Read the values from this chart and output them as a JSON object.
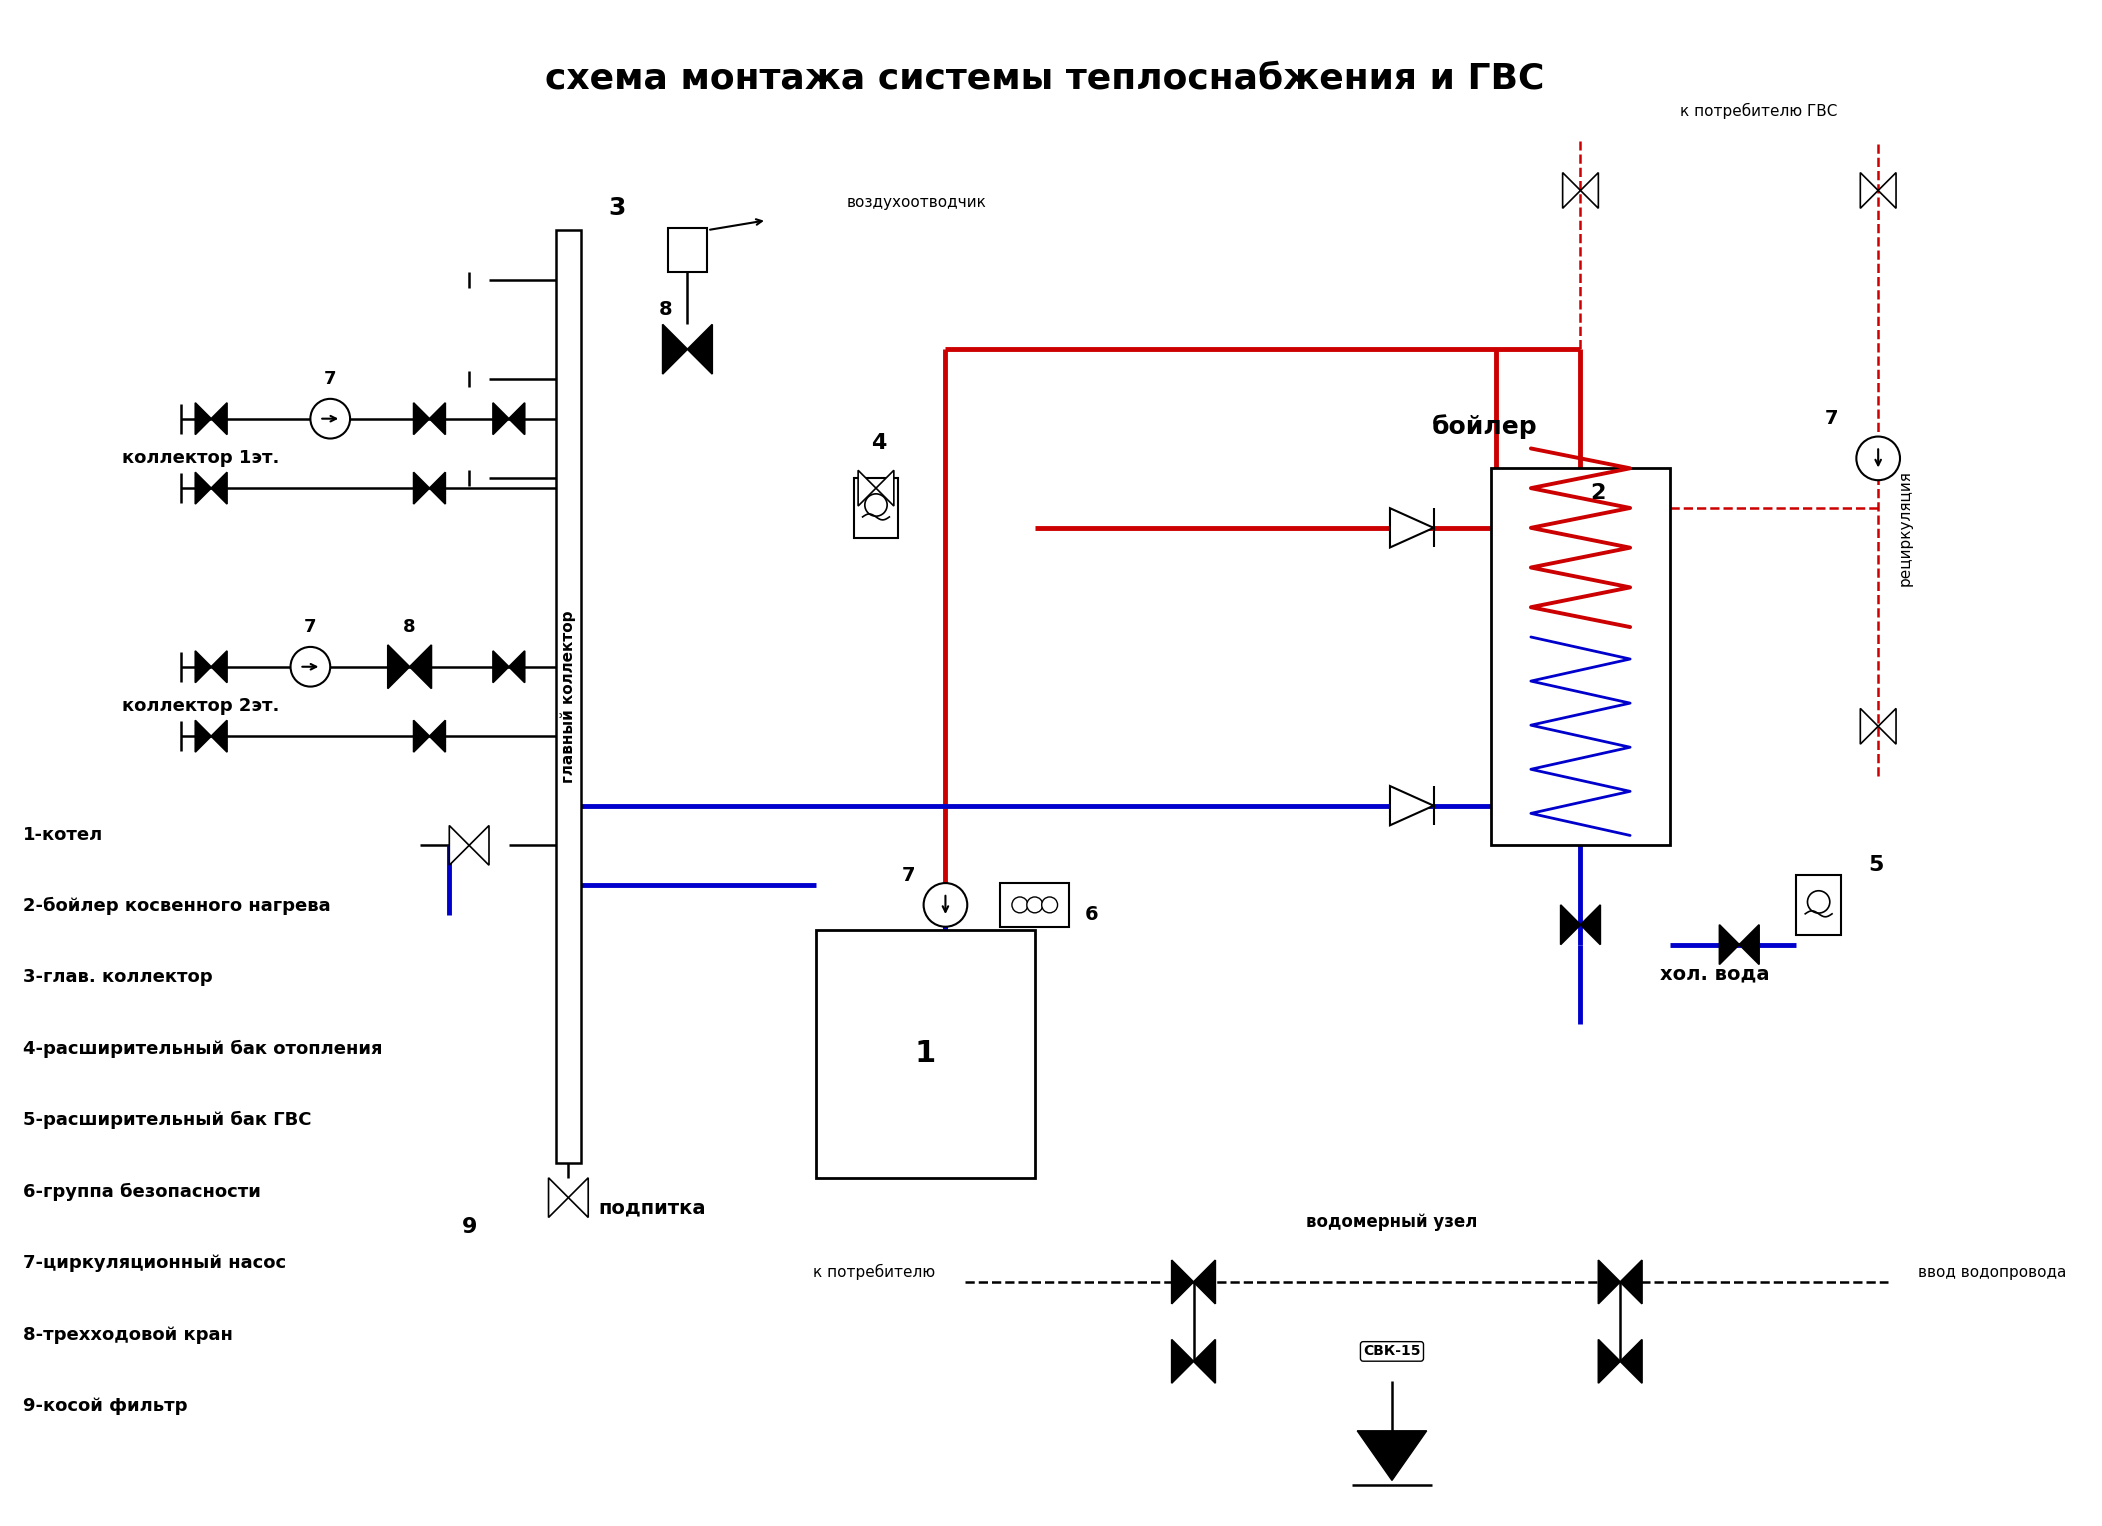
{
  "title": "схема монтажа системы теплоснабжения и ГВС",
  "title_fontsize": 26,
  "bg_color": "#ffffff",
  "line_color": "#000000",
  "red_color": "#cc0000",
  "blue_color": "#0000cc",
  "red_light": "#cc6666",
  "blue_light": "#6666cc",
  "legend_items": [
    "1-котел",
    "2-бойлер косвенного нагрева",
    "3-глав. коллектор",
    "4-расширительный бак отопления",
    "5-расширительный бак ГВС",
    "6-группа безопасности",
    "7-циркуляционный насос",
    "8-трехходовой кран",
    "9-косой фильтр"
  ]
}
